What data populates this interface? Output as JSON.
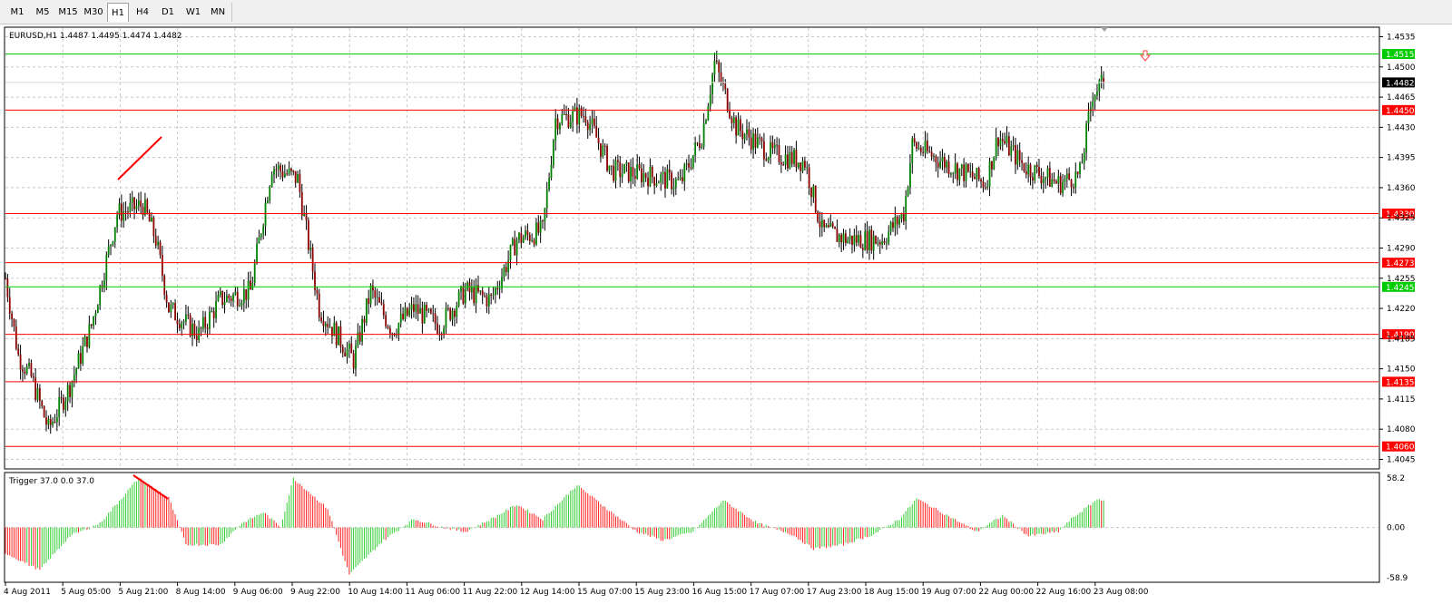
{
  "timeframes": {
    "items": [
      "M1",
      "M5",
      "M15",
      "M30",
      "H1",
      "H4",
      "D1",
      "W1",
      "MN"
    ],
    "active": "H1"
  },
  "chart": {
    "header": "EURUSD,H1  1.4487 1.4495 1.4474 1.4482",
    "current_price": "1.4482",
    "bid_line_color": "#d8d8d8",
    "price_axis": {
      "min": 1.4035,
      "max": 1.4545,
      "ticks": [
        "1.4535",
        "1.4500",
        "1.4465",
        "1.4430",
        "1.4395",
        "1.4360",
        "1.4325",
        "1.4290",
        "1.4255",
        "1.4220",
        "1.4185",
        "1.4150",
        "1.4115",
        "1.4080",
        "1.4045"
      ]
    },
    "levels": [
      {
        "price": 1.4515,
        "label": "1.4515",
        "color": "#00cc00"
      },
      {
        "price": 1.445,
        "label": "1.4450",
        "color": "#ff0000"
      },
      {
        "price": 1.433,
        "label": "1.4330",
        "color": "#ff0000"
      },
      {
        "price": 1.4273,
        "label": "1.4273",
        "color": "#ff0000"
      },
      {
        "price": 1.4245,
        "label": "1.4245",
        "color": "#00cc00"
      },
      {
        "price": 1.419,
        "label": "1.4190",
        "color": "#ff0000"
      },
      {
        "price": 1.4135,
        "label": "1.4135",
        "color": "#ff0000"
      },
      {
        "price": 1.406,
        "label": "1.4060",
        "color": "#ff0000"
      }
    ],
    "time_labels": [
      "4 Aug 2011",
      "5 Aug 05:00",
      "5 Aug 21:00",
      "8 Aug 14:00",
      "9 Aug 06:00",
      "9 Aug 22:00",
      "10 Aug 14:00",
      "11 Aug 06:00",
      "11 Aug 22:00",
      "12 Aug 14:00",
      "15 Aug 07:00",
      "15 Aug 23:00",
      "16 Aug 15:00",
      "17 Aug 07:00",
      "17 Aug 23:00",
      "18 Aug 15:00",
      "19 Aug 07:00",
      "22 Aug 00:00",
      "22 Aug 16:00",
      "23 Aug 08:00"
    ],
    "colors": {
      "bull": "#008000",
      "bear": "#8b0000",
      "wick": "#000000",
      "grid": "#c8c8c8",
      "trendline": "#ff0000",
      "arrow": "#ff4040"
    }
  },
  "indicator": {
    "header": "Trigger 37.0 0.0 37.0",
    "axis_ticks": [
      "58.2",
      "0.00",
      "-58.9"
    ],
    "max": 58.2,
    "min": -58.9,
    "colors": {
      "up": "#33cc33",
      "down": "#ff2020"
    }
  },
  "chart_data": {
    "type": "candlestick",
    "symbol": "EURUSD",
    "timeframe": "H1",
    "last_bar": {
      "open": 1.4487,
      "high": 1.4495,
      "low": 1.4474,
      "close": 1.4482
    },
    "anchors": [
      [
        0,
        1.4255
      ],
      [
        6,
        1.4165
      ],
      [
        12,
        1.414
      ],
      [
        20,
        1.408
      ],
      [
        30,
        1.413
      ],
      [
        40,
        1.42
      ],
      [
        52,
        1.433
      ],
      [
        64,
        1.434
      ],
      [
        70,
        1.43
      ],
      [
        76,
        1.422
      ],
      [
        90,
        1.419
      ],
      [
        100,
        1.423
      ],
      [
        114,
        1.424
      ],
      [
        124,
        1.4385
      ],
      [
        136,
        1.437
      ],
      [
        146,
        1.422
      ],
      [
        162,
        1.416
      ],
      [
        170,
        1.424
      ],
      [
        180,
        1.4195
      ],
      [
        190,
        1.422
      ],
      [
        202,
        1.42
      ],
      [
        214,
        1.424
      ],
      [
        226,
        1.423
      ],
      [
        238,
        1.43
      ],
      [
        250,
        1.431
      ],
      [
        256,
        1.444
      ],
      [
        270,
        1.4445
      ],
      [
        282,
        1.438
      ],
      [
        298,
        1.4375
      ],
      [
        314,
        1.4365
      ],
      [
        324,
        1.442
      ],
      [
        330,
        1.4505
      ],
      [
        340,
        1.443
      ],
      [
        356,
        1.44
      ],
      [
        372,
        1.439
      ],
      [
        380,
        1.431
      ],
      [
        392,
        1.43
      ],
      [
        408,
        1.43
      ],
      [
        418,
        1.433
      ],
      [
        422,
        1.441
      ],
      [
        440,
        1.4385
      ],
      [
        456,
        1.4365
      ],
      [
        462,
        1.442
      ],
      [
        474,
        1.4385
      ],
      [
        490,
        1.4365
      ],
      [
        500,
        1.4375
      ],
      [
        506,
        1.447
      ],
      [
        511,
        1.4482
      ]
    ],
    "trigger_anchors": [
      [
        0,
        -30
      ],
      [
        16,
        -50
      ],
      [
        30,
        -10
      ],
      [
        44,
        5
      ],
      [
        62,
        58
      ],
      [
        76,
        35
      ],
      [
        84,
        -20
      ],
      [
        100,
        -20
      ],
      [
        110,
        5
      ],
      [
        120,
        18
      ],
      [
        128,
        1
      ],
      [
        134,
        58
      ],
      [
        150,
        22
      ],
      [
        160,
        -55
      ],
      [
        176,
        -15
      ],
      [
        190,
        10
      ],
      [
        204,
        0
      ],
      [
        214,
        -5
      ],
      [
        226,
        10
      ],
      [
        238,
        27
      ],
      [
        250,
        10
      ],
      [
        266,
        50
      ],
      [
        280,
        22
      ],
      [
        294,
        -5
      ],
      [
        306,
        -15
      ],
      [
        320,
        -5
      ],
      [
        334,
        32
      ],
      [
        350,
        5
      ],
      [
        366,
        -8
      ],
      [
        376,
        -25
      ],
      [
        390,
        -20
      ],
      [
        404,
        -8
      ],
      [
        416,
        10
      ],
      [
        424,
        34
      ],
      [
        440,
        12
      ],
      [
        452,
        -5
      ],
      [
        464,
        14
      ],
      [
        476,
        -10
      ],
      [
        490,
        -5
      ],
      [
        496,
        10
      ],
      [
        508,
        33
      ]
    ]
  }
}
